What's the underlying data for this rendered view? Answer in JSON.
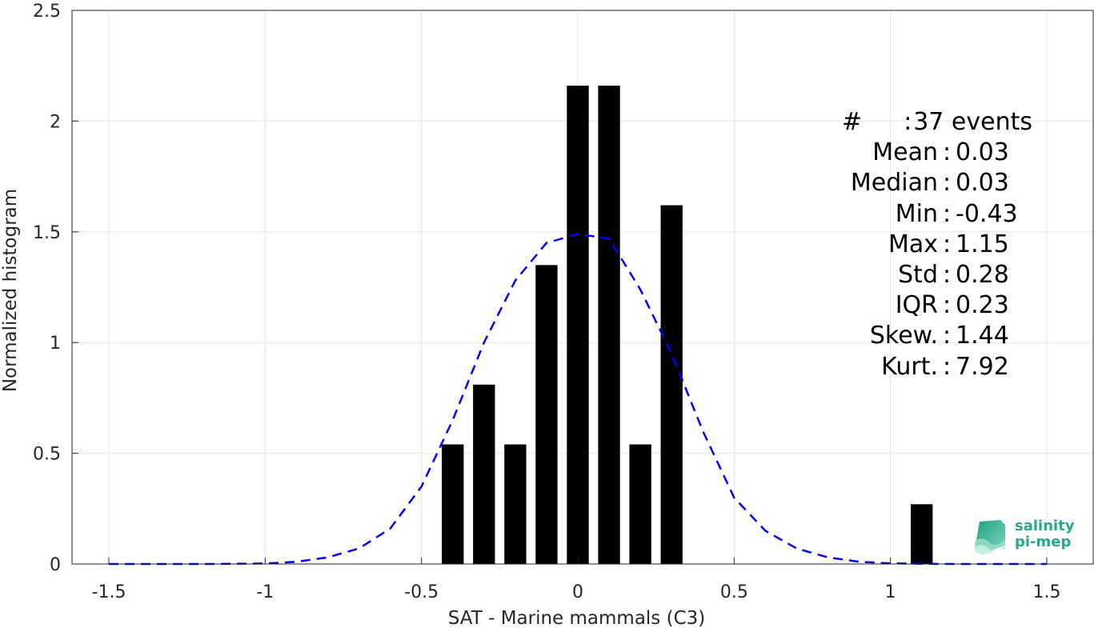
{
  "chart_data": {
    "type": "bar",
    "xlabel": "SAT - Marine mammals (C3)",
    "ylabel": "Normalized histogram",
    "xlim": [
      -1.5,
      1.5
    ],
    "ylim": [
      0,
      2.5
    ],
    "x_ticks": [
      "-1.5",
      "-1",
      "-0.5",
      "0",
      "0.5",
      "1",
      "1.5"
    ],
    "y_ticks": [
      "0",
      "0.5",
      "1",
      "1.5",
      "2",
      "2.5"
    ],
    "grid": true,
    "bar_width": 0.07,
    "bars": [
      {
        "x": -0.4,
        "value": 0.54
      },
      {
        "x": -0.3,
        "value": 0.81
      },
      {
        "x": -0.2,
        "value": 0.54
      },
      {
        "x": -0.1,
        "value": 1.35
      },
      {
        "x": 0.0,
        "value": 2.16
      },
      {
        "x": 0.1,
        "value": 2.16
      },
      {
        "x": 0.2,
        "value": 0.54
      },
      {
        "x": 0.3,
        "value": 1.62
      },
      {
        "x": 1.1,
        "value": 0.27
      }
    ],
    "fit_curve": {
      "style": "dashed",
      "color": "#0000ff",
      "x": [
        -1.5,
        -1.4,
        -1.3,
        -1.2,
        -1.1,
        -1.0,
        -0.9,
        -0.8,
        -0.7,
        -0.6,
        -0.5,
        -0.4,
        -0.3,
        -0.2,
        -0.1,
        0.0,
        0.1,
        0.2,
        0.3,
        0.4,
        0.5,
        0.6,
        0.7,
        0.8,
        0.9,
        1.0,
        1.1,
        1.2,
        1.3,
        1.4,
        1.5
      ],
      "y": [
        0.0,
        0.0,
        0.0,
        0.0,
        0.001,
        0.002,
        0.01,
        0.03,
        0.07,
        0.16,
        0.35,
        0.65,
        1.0,
        1.28,
        1.45,
        1.49,
        1.47,
        1.24,
        0.95,
        0.6,
        0.3,
        0.15,
        0.07,
        0.03,
        0.01,
        0.003,
        0.001,
        0.0,
        0.0,
        0.0,
        0.0
      ]
    },
    "colors": {
      "bars": "#000000",
      "fit": "#0000ff",
      "grid": "#e6e6e6",
      "axes": "#262626"
    }
  },
  "stats": [
    {
      "key": "#",
      "value": "37 events"
    },
    {
      "key": "Mean",
      "value": "0.03"
    },
    {
      "key": "Median",
      "value": "0.03"
    },
    {
      "key": "Min",
      "value": "-0.43"
    },
    {
      "key": "Max",
      "value": "1.15"
    },
    {
      "key": "Std",
      "value": "0.28"
    },
    {
      "key": "IQR",
      "value": "0.23"
    },
    {
      "key": "Skew.",
      "value": "1.44"
    },
    {
      "key": "Kurt.",
      "value": "7.92"
    }
  ],
  "logo": {
    "line1": "salinity",
    "line2": "pi-mep"
  }
}
